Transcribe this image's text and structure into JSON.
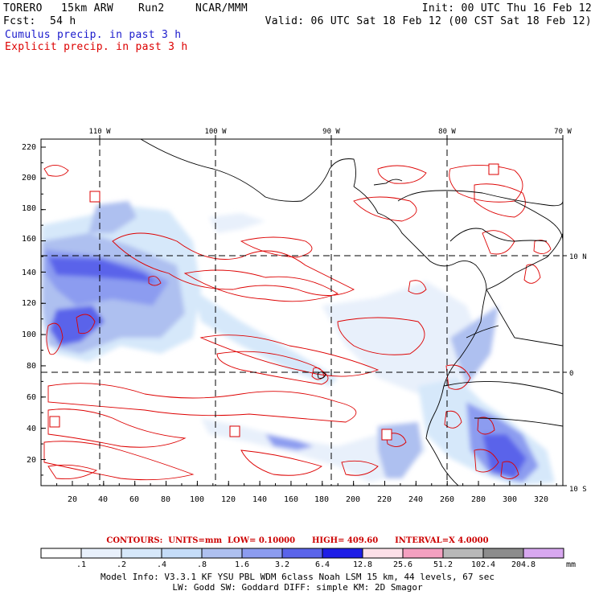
{
  "header": {
    "model": "TORERO",
    "resolution": "15km ARW",
    "run": "Run2",
    "org": "NCAR/MMM",
    "init": "Init: 00 UTC Thu 16 Feb 12",
    "fcst_label": "Fcst:",
    "fcst_value": "54 h",
    "valid": "Valid: 06 UTC Sat 18 Feb 12 (00 CST Sat 18 Feb 12)",
    "field1": "Cumulus precip. in past 3 h",
    "field2": "Explicit precip. in past 3 h"
  },
  "map": {
    "lon_labels": [
      "110 W",
      "100 W",
      "90 W",
      "80 W",
      "70 W"
    ],
    "lat_labels": [
      "10 N",
      "0",
      "10 S"
    ],
    "y_ticks": [
      "220",
      "200",
      "180",
      "160",
      "140",
      "120",
      "100",
      "80",
      "60",
      "40",
      "20"
    ],
    "x_ticks": [
      "20",
      "40",
      "60",
      "80",
      "100",
      "120",
      "140",
      "160",
      "180",
      "200",
      "220",
      "240",
      "260",
      "280",
      "300",
      "320"
    ]
  },
  "contours": {
    "label": "CONTOURS:",
    "units": "UNITS=mm",
    "low": "LOW= 0.10000",
    "high": "HIGH= 409.60",
    "interval": "INTERVAL=X 4.0000"
  },
  "colorbar": {
    "labels": [
      ".1",
      ".2",
      ".4",
      ".8",
      "1.6",
      "3.2",
      "6.4",
      "12.8",
      "25.6",
      "51.2",
      "102.4",
      "204.8"
    ],
    "colors": [
      "#ffffff",
      "#e8f0fb",
      "#d6e8fa",
      "#c4dcf8",
      "#aec0f0",
      "#8c9cf0",
      "#5a64ea",
      "#1e1ee6",
      "#fce0e8",
      "#f4a0c0",
      "#b8b8b8",
      "#8c8c8c",
      "#d8a8f0"
    ],
    "units": "mm"
  },
  "footer": {
    "line1": "Model Info: V3.3.1   KF    YSU PBL  WDM 6class  Noah LSM  15 km,   44 levels,   67 sec",
    "line2": "LW: Godd SW: Goddard DIFF: simple KM: 2D Smagor"
  },
  "colors": {
    "cumulus": "#1a1acc",
    "explicit": "#dd0000"
  }
}
